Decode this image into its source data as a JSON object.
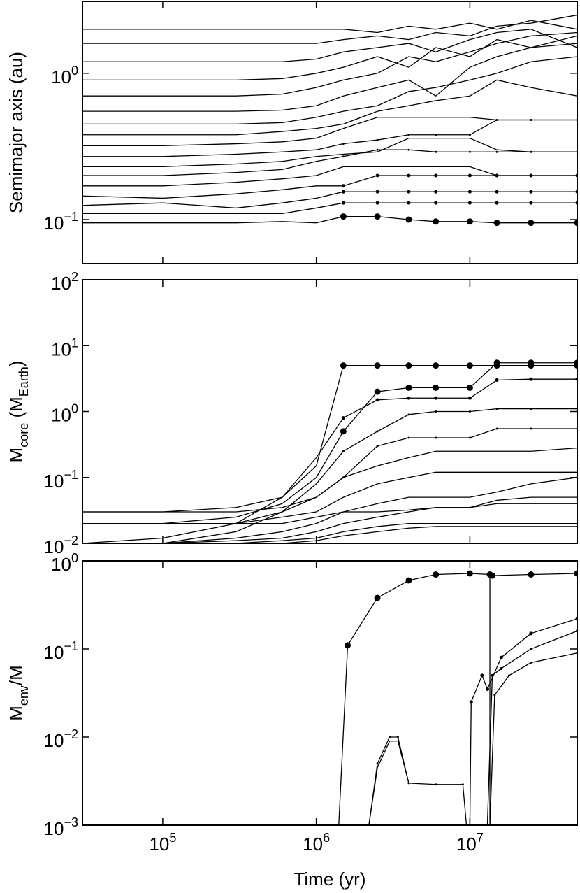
{
  "chart_data": [
    {
      "type": "line",
      "log": true,
      "color": "#000000",
      "ylabel": "Semimajor axis (au)",
      "xlim": [
        30000,
        50000000
      ],
      "ylim": [
        0.05,
        3.1
      ],
      "xticks": [
        100000,
        1000000,
        10000000
      ],
      "xtick_labels": false,
      "yticks": [
        {
          "value": 0.1,
          "base": "10",
          "exp": "−1"
        },
        {
          "value": 1,
          "base": "10",
          "exp": "0"
        }
      ],
      "x": [
        30000,
        100000,
        300000,
        600000,
        1000000,
        1500000,
        2500000,
        4000000,
        6000000,
        10000000,
        15000000,
        25000000,
        50000000
      ],
      "series": [
        {
          "marker_size": 4.5,
          "values": [
            0.095,
            0.095,
            0.095,
            0.097,
            0.095,
            0.105,
            0.105,
            0.1,
            0.097,
            0.097,
            0.095,
            0.095,
            0.095
          ]
        },
        {
          "marker_size": 2.5,
          "values": [
            0.11,
            0.11,
            0.11,
            0.11,
            0.12,
            0.13,
            0.13,
            0.13,
            0.13,
            0.13,
            0.13,
            0.13,
            0.13
          ]
        },
        {
          "marker_size": 2.5,
          "values": [
            0.125,
            0.13,
            0.12,
            0.13,
            0.14,
            0.155,
            0.155,
            0.155,
            0.155,
            0.155,
            0.155,
            0.155,
            0.155
          ]
        },
        {
          "marker_size": 2.5,
          "values": [
            0.145,
            0.14,
            0.15,
            0.16,
            0.17,
            0.17,
            0.2,
            0.2,
            0.2,
            0.2,
            0.2,
            0.2,
            0.2
          ]
        },
        {
          "values": [
            0.17,
            0.17,
            0.18,
            0.19,
            0.2,
            0.23,
            0.23,
            0.23,
            0.23,
            0.23,
            0.2,
            0.2,
            0.2
          ]
        },
        {
          "marker_size": 1.5,
          "values": [
            0.2,
            0.2,
            0.21,
            0.22,
            0.25,
            0.27,
            0.3,
            0.3,
            0.29,
            0.29,
            0.29,
            0.29,
            0.29
          ]
        },
        {
          "values": [
            0.23,
            0.23,
            0.24,
            0.25,
            0.27,
            0.28,
            0.29,
            0.36,
            0.36,
            0.36,
            0.3,
            0.29,
            0.29
          ]
        },
        {
          "marker_size": 1.5,
          "values": [
            0.27,
            0.27,
            0.28,
            0.29,
            0.3,
            0.33,
            0.35,
            0.38,
            0.38,
            0.38,
            0.48,
            0.48,
            0.48
          ]
        },
        {
          "values": [
            0.32,
            0.32,
            0.33,
            0.34,
            0.36,
            0.42,
            0.5,
            0.5,
            0.5,
            0.5,
            0.48,
            0.48,
            0.48
          ]
        },
        {
          "values": [
            0.38,
            0.38,
            0.38,
            0.4,
            0.42,
            0.45,
            0.55,
            0.6,
            0.65,
            0.7,
            0.9,
            0.8,
            0.7
          ]
        },
        {
          "values": [
            0.45,
            0.45,
            0.45,
            0.46,
            0.5,
            0.55,
            0.6,
            0.75,
            0.8,
            0.9,
            1.0,
            1.2,
            1.3
          ]
        },
        {
          "values": [
            0.55,
            0.55,
            0.55,
            0.56,
            0.6,
            0.7,
            0.8,
            0.9,
            0.7,
            1.1,
            1.3,
            1.5,
            1.6
          ]
        },
        {
          "values": [
            0.7,
            0.7,
            0.7,
            0.72,
            0.8,
            0.9,
            1.0,
            1.3,
            1.2,
            1.4,
            1.6,
            1.8,
            1.9
          ]
        },
        {
          "values": [
            0.9,
            0.9,
            0.9,
            0.92,
            1.0,
            1.1,
            1.3,
            1.1,
            1.5,
            1.3,
            1.7,
            1.5,
            1.8
          ]
        },
        {
          "values": [
            1.2,
            1.2,
            1.2,
            1.2,
            1.25,
            1.4,
            1.5,
            1.6,
            1.4,
            1.7,
            1.9,
            2.0,
            1.5
          ]
        },
        {
          "values": [
            1.6,
            1.6,
            1.6,
            1.6,
            1.6,
            1.7,
            1.8,
            1.7,
            1.9,
            1.8,
            2.1,
            2.2,
            2.5
          ]
        },
        {
          "values": [
            2.0,
            2.0,
            2.0,
            2.0,
            2.0,
            2.0,
            1.9,
            2.1,
            2.0,
            2.2,
            2.0,
            2.3,
            2.0
          ]
        }
      ]
    },
    {
      "type": "line",
      "log": true,
      "color": "#000000",
      "ylabel": [
        {
          "text": "M"
        },
        {
          "text": "core",
          "sub": true
        },
        {
          "text": " (M"
        },
        {
          "text": "Earth",
          "sub": true
        },
        {
          "text": ")"
        }
      ],
      "xlim": [
        30000,
        50000000
      ],
      "ylim": [
        0.01,
        100
      ],
      "xticks": [
        100000,
        1000000,
        10000000
      ],
      "xtick_labels": false,
      "yticks": [
        {
          "value": 0.01,
          "base": "10",
          "exp": "−2"
        },
        {
          "value": 0.1,
          "base": "10",
          "exp": "−1"
        },
        {
          "value": 1,
          "base": "10",
          "exp": "0"
        },
        {
          "value": 10,
          "base": "10",
          "exp": "1"
        },
        {
          "value": 100,
          "base": "10",
          "exp": "2"
        }
      ],
      "x": [
        30000,
        100000,
        300000,
        600000,
        1000000,
        1500000,
        2500000,
        4000000,
        6000000,
        10000000,
        15000000,
        25000000,
        50000000
      ],
      "series": [
        {
          "marker_size": 4.5,
          "values": [
            0.03,
            0.03,
            0.035,
            0.05,
            0.15,
            5,
            5,
            5,
            5,
            5,
            5,
            5,
            5
          ]
        },
        {
          "marker_size": 4.5,
          "values": [
            0.02,
            0.02,
            0.025,
            0.04,
            0.1,
            0.5,
            2,
            2.3,
            2.3,
            2.3,
            5.5,
            5.5,
            5.5
          ]
        },
        {
          "marker_size": 2.5,
          "values": [
            0.01,
            0.012,
            0.02,
            0.05,
            0.2,
            0.8,
            1.5,
            1.6,
            1.6,
            1.6,
            3,
            3.1,
            3.1
          ]
        },
        {
          "marker_size": 1.5,
          "values": [
            0.02,
            0.02,
            0.02,
            0.03,
            0.08,
            0.25,
            0.5,
            0.9,
            1.0,
            1.0,
            1.1,
            1.1,
            1.1
          ]
        },
        {
          "marker_size": 1.5,
          "values": [
            0.01,
            0.01,
            0.015,
            0.03,
            0.05,
            0.1,
            0.3,
            0.4,
            0.4,
            0.4,
            0.55,
            0.55,
            0.55
          ]
        },
        {
          "values": [
            0.03,
            0.03,
            0.03,
            0.035,
            0.05,
            0.1,
            0.15,
            0.2,
            0.25,
            0.25,
            0.25,
            0.25,
            0.28
          ]
        },
        {
          "values": [
            0.02,
            0.02,
            0.02,
            0.025,
            0.03,
            0.05,
            0.08,
            0.1,
            0.12,
            0.12,
            0.12,
            0.12,
            0.12
          ]
        },
        {
          "values": [
            0.01,
            0.01,
            0.012,
            0.015,
            0.02,
            0.03,
            0.04,
            0.05,
            0.05,
            0.05,
            0.06,
            0.08,
            0.1
          ]
        },
        {
          "values": [
            0.01,
            0.01,
            0.011,
            0.012,
            0.015,
            0.02,
            0.025,
            0.03,
            0.035,
            0.035,
            0.04,
            0.04,
            0.04
          ]
        },
        {
          "values": [
            0.01,
            0.01,
            0.01,
            0.011,
            0.012,
            0.015,
            0.018,
            0.02,
            0.02,
            0.02,
            0.02,
            0.02,
            0.02
          ]
        },
        {
          "values": [
            0.01,
            0.01,
            0.01,
            0.01,
            0.011,
            0.013,
            0.015,
            0.017,
            0.018,
            0.018,
            0.018,
            0.018,
            0.018
          ]
        },
        {
          "values": [
            0.02,
            0.02,
            0.02,
            0.02,
            0.025,
            0.03,
            0.03,
            0.032,
            0.035,
            0.035,
            0.045,
            0.05,
            0.05
          ]
        }
      ]
    },
    {
      "type": "line",
      "log": true,
      "color": "#000000",
      "ylabel": [
        {
          "text": "M"
        },
        {
          "text": "env",
          "sub": true
        },
        {
          "text": "/M"
        }
      ],
      "xlabel": "Time (yr)",
      "xlim": [
        30000,
        50000000
      ],
      "ylim": [
        0.001,
        1
      ],
      "xticks": [
        {
          "value": 100000,
          "base": "10",
          "exp": "5"
        },
        {
          "value": 1000000,
          "base": "10",
          "exp": "6"
        },
        {
          "value": 10000000,
          "base": "10",
          "exp": "7"
        }
      ],
      "xtick_labels": true,
      "yticks": [
        {
          "value": 0.001,
          "base": "10",
          "exp": "−3"
        },
        {
          "value": 0.01,
          "base": "10",
          "exp": "−2"
        },
        {
          "value": 0.1,
          "base": "10",
          "exp": "−1"
        },
        {
          "value": 1,
          "base": "10",
          "exp": "0"
        }
      ],
      "series": [
        {
          "marker_size": 4.5,
          "x": [
            1400000,
            1600000,
            2500000,
            4000000,
            6000000,
            10000000,
            13500000,
            14000000,
            25000000,
            50000000
          ],
          "values": [
            0.001,
            0.11,
            0.38,
            0.6,
            0.7,
            0.72,
            0.7,
            0.68,
            0.7,
            0.72
          ]
        },
        {
          "marker_size": 1.5,
          "x": [
            2200000,
            2500000,
            3000000,
            3400000,
            4000000,
            6000000,
            9000000,
            9500000
          ],
          "values": [
            0.001,
            0.005,
            0.01,
            0.01,
            0.003,
            0.0029,
            0.0029,
            0.001
          ]
        },
        {
          "x": [
            2200000,
            2500000,
            3000000,
            3400000,
            4000000
          ],
          "values": [
            0.001,
            0.0045,
            0.009,
            0.009,
            0.003
          ]
        },
        {
          "marker_size": 2.5,
          "x": [
            10000000,
            10200000,
            12000000,
            13000000,
            16000000,
            25000000,
            50000000
          ],
          "values": [
            0.001,
            0.025,
            0.05,
            0.035,
            0.08,
            0.15,
            0.22
          ]
        },
        {
          "marker_size": 2,
          "x": [
            13000000,
            14000000,
            16000000,
            25000000,
            50000000
          ],
          "values": [
            0.001,
            0.05,
            0.06,
            0.1,
            0.16
          ]
        },
        {
          "marker_size": 1.5,
          "x": [
            13500000,
            14500000,
            18000000,
            25000000,
            50000000
          ],
          "values": [
            0.001,
            0.03,
            0.05,
            0.07,
            0.09
          ]
        },
        {
          "x": [
            13500000,
            13500000
          ],
          "values": [
            0.7,
            0.001
          ]
        }
      ]
    }
  ]
}
